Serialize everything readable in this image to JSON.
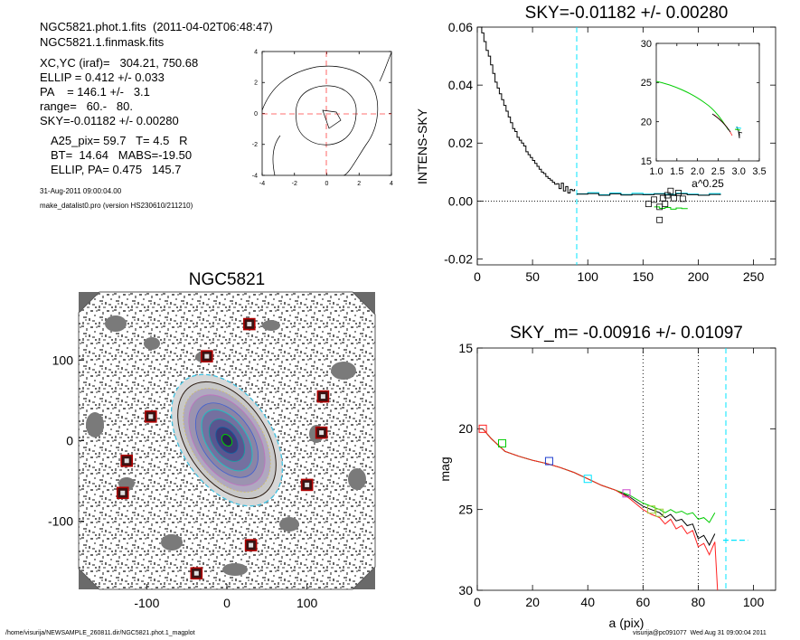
{
  "header": {
    "line1": "NGC5821.phot.1.fits  (2011-04-02T06:48:47)",
    "line2": "NGC5821.1.finmask.fits",
    "line3": "XC,YC (iraf)=   304.21, 750.68",
    "line4": "ELLIP = 0.412 +/- 0.033",
    "line5": "PA    = 146.1 +/-   3.1",
    "line6": "range=   60.-   80.",
    "line7": "SKY=-0.01182 +/- 0.00280",
    "line8": "A25_pix= 59.7   T= 4.5   R",
    "line9": "BT=  14.64   MABS=-19.50",
    "line10": "ELLIP, PA= 0.475   145.7",
    "date": "31-Aug-2011 09:00:04.00",
    "program": "make_datalist0.pro (version HS230610/211210)"
  },
  "footer": {
    "path": "/home/visurija/NEWSAMPLE_260811.dir/NGC5821.phot.1_magplot",
    "user": "visurija@pc091077  Wed Aug 31 09:00:04 2011"
  },
  "colors": {
    "cyan": "#00e5ff",
    "green": "#00cc00",
    "red": "#ff2020",
    "blue": "#2040d0",
    "magenta": "#cc44cc",
    "yellowgreen": "#a0d040"
  },
  "chart_data": [
    {
      "type": "line",
      "id": "contour-plot",
      "title": "",
      "xlim": [
        -4,
        4
      ],
      "ylim": [
        -4,
        4
      ],
      "xticks": [
        "-4",
        "-2",
        "0",
        "2",
        "4"
      ],
      "yticks": [
        "-4",
        "-2",
        "0",
        "2",
        "4"
      ],
      "crosshair": "dashed red at 0,0"
    },
    {
      "type": "line",
      "id": "intens-sky",
      "title": "SKY=-0.01182 +/- 0.00280",
      "xlabel": "",
      "ylabel": "INTENS-SKY",
      "xlim": [
        0,
        270
      ],
      "ylim": [
        -0.022,
        0.06
      ],
      "xticks": [
        "0",
        "50",
        "100",
        "150",
        "200",
        "250"
      ],
      "yticks": [
        "-0.02",
        "0.00",
        "0.02",
        "0.04",
        "0.06"
      ],
      "sky_marker_x": 90,
      "series": [
        {
          "color": "black",
          "x": [
            2,
            4,
            6,
            8,
            10,
            12,
            14,
            16,
            18,
            20,
            22,
            24,
            26,
            28,
            30,
            32,
            34,
            36,
            38,
            40,
            42,
            44,
            46,
            48,
            50,
            52,
            54,
            56,
            58,
            60,
            62,
            64,
            66,
            68,
            70,
            72,
            74,
            76,
            78,
            80,
            82,
            84,
            86,
            88
          ],
          "y": [
            0.06,
            0.058,
            0.055,
            0.052,
            0.05,
            0.047,
            0.044,
            0.041,
            0.039,
            0.037,
            0.035,
            0.033,
            0.031,
            0.029,
            0.027,
            0.025,
            0.024,
            0.022,
            0.021,
            0.02,
            0.019,
            0.017,
            0.016,
            0.015,
            0.014,
            0.013,
            0.012,
            0.011,
            0.01,
            0.0095,
            0.0085,
            0.0078,
            0.0072,
            0.0065,
            0.0058,
            0.006,
            0.0043,
            0.0062,
            0.0035,
            0.005,
            0.0028,
            0.004,
            0.0036,
            0.0042
          ]
        },
        {
          "color": "cyan",
          "x": [
            90,
            100,
            110,
            120,
            130,
            140,
            150,
            160,
            170,
            180,
            190,
            200,
            210,
            220
          ],
          "y": [
            0.0025,
            0.0029,
            0.0022,
            0.0028,
            0.0023,
            0.0027,
            0.0024,
            0.0026,
            0.0023,
            0.0027,
            0.0024,
            0.0021,
            0.0026,
            0.0022
          ]
        },
        {
          "color": "black",
          "x": [
            90,
            100,
            110,
            120,
            130,
            140,
            150,
            160,
            170,
            180,
            190,
            200,
            210,
            220
          ],
          "y": [
            0.0024,
            0.0026,
            0.002,
            0.0025,
            0.0021,
            0.0023,
            0.0022,
            0.0024,
            0.0021,
            0.0025,
            0.0022,
            0.002,
            0.0023,
            0.0021
          ]
        },
        {
          "color": "green",
          "x": [
            160,
            165,
            170,
            175,
            180,
            185,
            190
          ],
          "y": [
            -0.002,
            -0.0025,
            -0.0022,
            -0.0028,
            -0.0024,
            -0.0026,
            -0.0024
          ]
        }
      ],
      "squares": [
        [
          155,
          -0.001
        ],
        [
          160,
          0.0005
        ],
        [
          165,
          -0.002
        ],
        [
          168,
          0.001
        ],
        [
          172,
          0.002
        ],
        [
          175,
          0.0035
        ],
        [
          178,
          0.001
        ],
        [
          182,
          0.0028
        ],
        [
          186,
          0.0008
        ],
        [
          165,
          -0.0065
        ],
        [
          170,
          -0.001
        ]
      ],
      "inset": {
        "xlabel": "a^0.25",
        "xlim": [
          1.0,
          3.5
        ],
        "ylim": [
          15,
          30
        ],
        "xticks": [
          "1.0",
          "1.5",
          "2.0",
          "2.5",
          "3.0",
          "3.5"
        ],
        "yticks": [
          "15",
          "20",
          "25",
          "30"
        ]
      }
    },
    {
      "type": "heatmap",
      "id": "ngc-image",
      "title": "NGC5821",
      "xlim": [
        -185,
        185
      ],
      "ylim": [
        -185,
        185
      ],
      "xticks": [
        "-100",
        "0",
        "100"
      ],
      "yticks": [
        "-100",
        "0",
        "100"
      ],
      "ellipse_pa": 146.1,
      "ellipse_ellip": 0.412,
      "masked_squares": [
        [
          28,
          145
        ],
        [
          -25,
          105
        ],
        [
          120,
          55
        ],
        [
          -95,
          30
        ],
        [
          118,
          10
        ],
        [
          -125,
          -25
        ],
        [
          -130,
          -65
        ],
        [
          100,
          -55
        ],
        [
          30,
          -130
        ],
        [
          -38,
          -165
        ]
      ]
    },
    {
      "type": "line",
      "id": "mag-profile",
      "title": "SKY_m= -0.00916 +/- 0.01097",
      "xlabel": "a (pix)",
      "ylabel": "mag",
      "xlim": [
        0,
        108
      ],
      "ylim": [
        30,
        15
      ],
      "reversed_y": true,
      "xticks": [
        "0",
        "20",
        "40",
        "60",
        "80",
        "100"
      ],
      "yticks": [
        "15",
        "20",
        "25",
        "30"
      ],
      "range_lines": [
        60,
        80
      ],
      "sky_line": 90,
      "series": [
        {
          "color": "black",
          "x": [
            2,
            5,
            10,
            15,
            20,
            25,
            30,
            35,
            40,
            45,
            50,
            55,
            60,
            63,
            66,
            68,
            70,
            72,
            74,
            76,
            78,
            80,
            82,
            84,
            86
          ],
          "y": [
            20.0,
            20.6,
            21.4,
            21.7,
            21.95,
            22.15,
            22.4,
            22.7,
            23.1,
            23.5,
            23.8,
            24.2,
            24.8,
            25.0,
            25.2,
            25.5,
            25.3,
            25.7,
            25.6,
            26.0,
            25.9,
            26.8,
            26.6,
            27.2,
            26.5
          ]
        },
        {
          "color": "green",
          "x": [
            2,
            5,
            10,
            15,
            20,
            25,
            30,
            35,
            40,
            45,
            50,
            55,
            60,
            63,
            66,
            68,
            70,
            72,
            74,
            76,
            78,
            80,
            82,
            84,
            86
          ],
          "y": [
            20.0,
            20.6,
            21.4,
            21.7,
            21.95,
            22.15,
            22.4,
            22.7,
            23.1,
            23.5,
            23.8,
            24.1,
            24.6,
            24.8,
            25.0,
            25.2,
            25.0,
            25.2,
            25.1,
            25.3,
            25.2,
            25.6,
            25.5,
            25.8,
            25.2
          ]
        },
        {
          "color": "red",
          "x": [
            2,
            5,
            10,
            15,
            20,
            25,
            30,
            35,
            40,
            45,
            50,
            55,
            60,
            63,
            66,
            68,
            70,
            72,
            74,
            76,
            78,
            80,
            82,
            84,
            86,
            87
          ],
          "y": [
            20.0,
            20.6,
            21.4,
            21.7,
            21.95,
            22.15,
            22.4,
            22.7,
            23.1,
            23.5,
            23.8,
            24.3,
            25.0,
            25.3,
            25.5,
            25.9,
            25.6,
            26.2,
            26.0,
            26.5,
            26.3,
            27.3,
            27.1,
            27.8,
            27.0,
            30.0
          ]
        }
      ],
      "squares": [
        [
          2,
          20.0,
          "red"
        ],
        [
          9,
          20.9,
          "green"
        ],
        [
          26,
          22.0,
          "blue"
        ],
        [
          40,
          23.1,
          "cyan"
        ],
        [
          54,
          24.0,
          "magenta"
        ],
        [
          63,
          25.0,
          "yellowgreen"
        ],
        [
          66,
          25.2,
          "yellowgreen"
        ]
      ],
      "sky_segment": {
        "x": [
          89,
          98
        ],
        "y": 26.9
      }
    }
  ]
}
